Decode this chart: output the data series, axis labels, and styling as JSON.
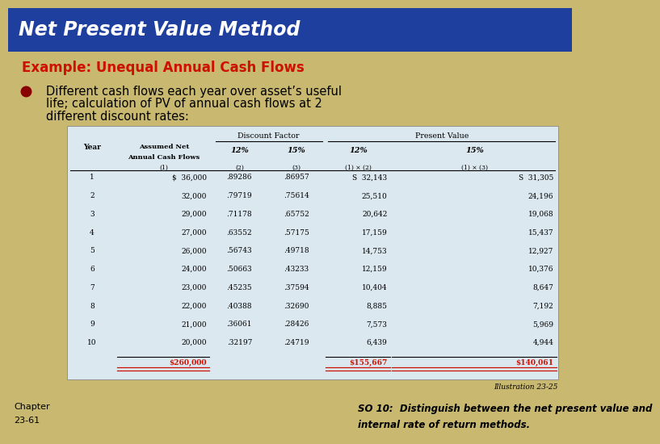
{
  "title": "Net Present Value Method",
  "subtitle": "Example: Unequal Annual Cash Flows",
  "bullet_line1": "Different cash flows each year over asset’s useful",
  "bullet_line2": "life; calculation of PV of annual cash flows at 2",
  "bullet_line3": "different discount rates:",
  "table": {
    "rows": [
      [
        "1",
        "$  36,000",
        ".89286",
        ".86957",
        "S  32,143",
        "S  31,305"
      ],
      [
        "2",
        "32,000",
        ".79719",
        ".75614",
        "25,510",
        "24,196"
      ],
      [
        "3",
        "29,000",
        ".71178",
        ".65752",
        "20,642",
        "19,068"
      ],
      [
        "4",
        "27,000",
        ".63552",
        ".57175",
        "17,159",
        "15,437"
      ],
      [
        "5",
        "26,000",
        ".56743",
        ".49718",
        "14,753",
        "12,927"
      ],
      [
        "6",
        "24,000",
        ".50663",
        ".43233",
        "12,159",
        "10,376"
      ],
      [
        "7",
        "23,000",
        ".45235",
        ".37594",
        "10,404",
        "8,647"
      ],
      [
        "8",
        "22,000",
        ".40388",
        ".32690",
        "8,885",
        "7,192"
      ],
      [
        "9",
        "21,000",
        ".36061",
        ".28426",
        "7,573",
        "5,969"
      ],
      [
        "10",
        "20,000",
        ".32197",
        ".24719",
        "6,439",
        "4,944"
      ]
    ],
    "total_row": [
      "",
      "$260,000",
      "",
      "",
      "$155,667",
      "$140,061"
    ]
  },
  "illustration": "Illustration 23-25",
  "footer_line1": "SO 10:  Distinguish between the net present value and",
  "footer_line2": "internal rate of return methods.",
  "chapter_line1": "Chapter",
  "chapter_line2": "23-61",
  "colors": {
    "title_bg": "#1f3f9f",
    "title_bg_shadow": "#111133",
    "title_text": "#ffffff",
    "outer_bg": "#c8b870",
    "body_bg": "#f5f0c0",
    "subtitle_text": "#cc1100",
    "bullet_dot": "#880000",
    "bullet_text": "#000000",
    "table_bg": "#dce8f0",
    "table_total_text": "#cc1100",
    "footer_text": "#000000",
    "chapter_text": "#000000"
  }
}
